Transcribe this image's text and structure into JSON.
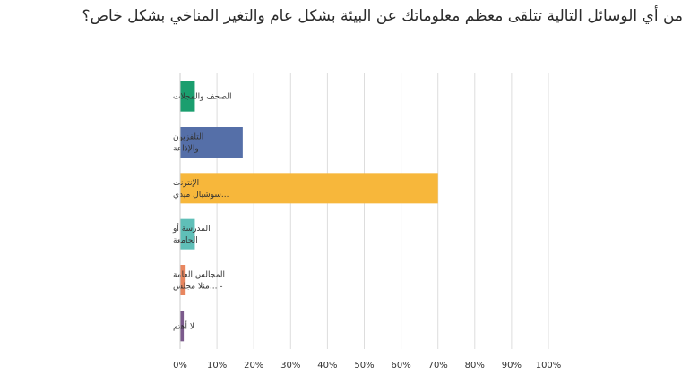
{
  "title": "من أي الوسائل التالية تتلقى معظم معلوماتك عن البيئة بشكل عام والتغير المناخي بشكل خاص؟",
  "chart_data": {
    "type": "bar",
    "orientation": "horizontal",
    "categories": [
      [
        "الصحف والمجلات"
      ],
      [
        "التلفزيون",
        "والإذاعة"
      ],
      [
        "الإنترنت",
        "...سوشيال ميدي"
      ],
      [
        "المدرسة أو",
        "الجامعة"
      ],
      [
        "المجالس العامة",
        "- ...مثلا مجلس"
      ],
      [
        "لا أهتم"
      ]
    ],
    "values": [
      4,
      17,
      70,
      4,
      1.5,
      1
    ],
    "colors": [
      "#1a9e6e",
      "#556fa8",
      "#f7b73b",
      "#5fbfb8",
      "#e8865f",
      "#7b5a8c"
    ],
    "xlim": [
      0,
      100
    ],
    "xticks": [
      "0%",
      "10%",
      "20%",
      "30%",
      "40%",
      "50%",
      "60%",
      "70%",
      "80%",
      "90%",
      "100%"
    ],
    "grid": true
  }
}
